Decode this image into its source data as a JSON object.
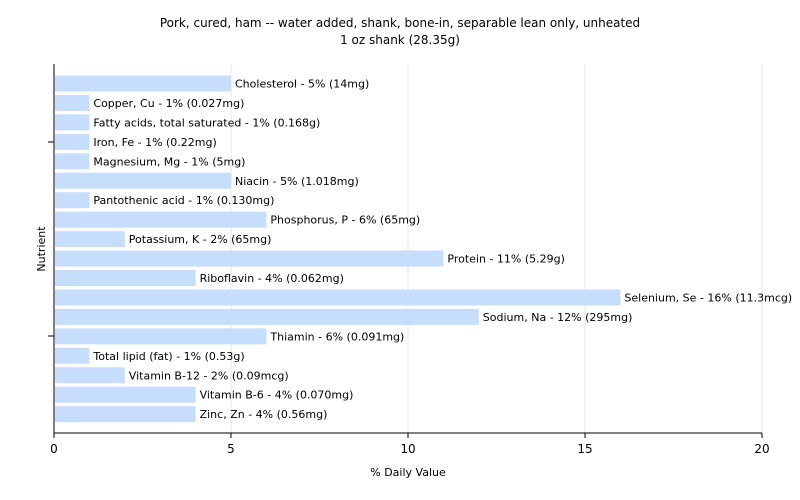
{
  "chart_data": {
    "type": "bar",
    "orientation": "horizontal",
    "title": "Pork, cured, ham -- water added, shank, bone-in, separable lean only, unheated",
    "subtitle": "1 oz shank (28.35g)",
    "xlabel": "% Daily Value",
    "ylabel": "Nutrient",
    "xlim": [
      0,
      20
    ],
    "xticks": [
      "0",
      "5",
      "10",
      "15",
      "20"
    ],
    "grid": "vertical",
    "bar_color": "#c6ddfc",
    "categories": [
      "Cholesterol",
      "Copper, Cu",
      "Fatty acids, total saturated",
      "Iron, Fe",
      "Magnesium, Mg",
      "Niacin",
      "Pantothenic acid",
      "Phosphorus, P",
      "Potassium, K",
      "Protein",
      "Riboflavin",
      "Selenium, Se",
      "Sodium, Na",
      "Thiamin",
      "Total lipid (fat)",
      "Vitamin B-12",
      "Vitamin B-6",
      "Zinc, Zn"
    ],
    "values": [
      5,
      1,
      1,
      1,
      1,
      5,
      1,
      6,
      2,
      11,
      4,
      16,
      12,
      6,
      1,
      2,
      4,
      4
    ],
    "labels": [
      "Cholesterol - 5% (14mg)",
      "Copper, Cu - 1% (0.027mg)",
      "Fatty acids, total saturated - 1% (0.168g)",
      "Iron, Fe - 1% (0.22mg)",
      "Magnesium, Mg - 1% (5mg)",
      "Niacin - 5% (1.018mg)",
      "Pantothenic acid - 1% (0.130mg)",
      "Phosphorus, P - 6% (65mg)",
      "Potassium, K - 2% (65mg)",
      "Protein - 11% (5.29g)",
      "Riboflavin - 4% (0.062mg)",
      "Selenium, Se - 16% (11.3mcg)",
      "Sodium, Na - 12% (295mg)",
      "Thiamin - 6% (0.091mg)",
      "Total lipid (fat) - 1% (0.53g)",
      "Vitamin B-12 - 2% (0.09mcg)",
      "Vitamin B-6 - 4% (0.070mg)",
      "Zinc, Zn - 4% (0.56mg)"
    ]
  }
}
